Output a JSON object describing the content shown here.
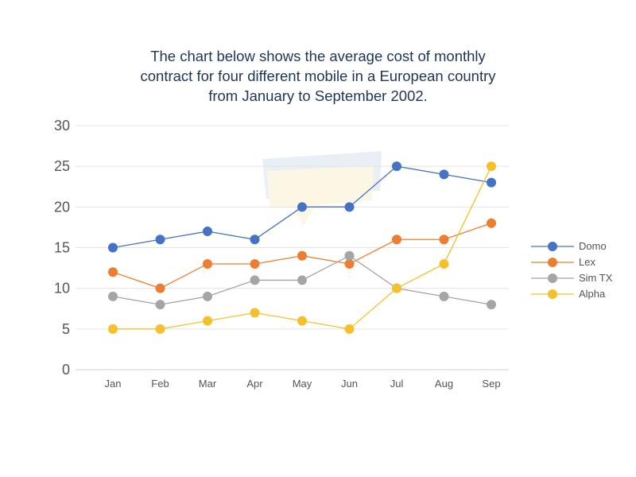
{
  "chart_data": {
    "type": "line",
    "title": [
      "The chart below shows the average cost of monthly",
      "contract for four different mobile in a European country",
      "from January to September 2002."
    ],
    "xlabel": "",
    "ylabel": "",
    "ylim": [
      0,
      30
    ],
    "yticks": [
      "0",
      "5",
      "10",
      "15",
      "20",
      "25",
      "30"
    ],
    "categories": [
      "Jan",
      "Feb",
      "Mar",
      "Apr",
      "May",
      "Jun",
      "Jul",
      "Aug",
      "Sep"
    ],
    "grid": true,
    "legend_position": "right",
    "series": [
      {
        "name": "Domo",
        "color": "#4472c4",
        "values": [
          15,
          16,
          17,
          16,
          20,
          20,
          25,
          24,
          23
        ]
      },
      {
        "name": "Lex",
        "color": "#ed7d31",
        "values": [
          12,
          10,
          13,
          13,
          14,
          13,
          16,
          16,
          18
        ]
      },
      {
        "name": "Sim TX",
        "color": "#a5a5a5",
        "values": [
          9,
          8,
          9,
          11,
          11,
          14,
          10,
          9,
          8
        ]
      },
      {
        "name": "Alpha",
        "color": "#f5c02b",
        "values": [
          5,
          5,
          6,
          7,
          6,
          5,
          10,
          13,
          25
        ]
      }
    ]
  }
}
